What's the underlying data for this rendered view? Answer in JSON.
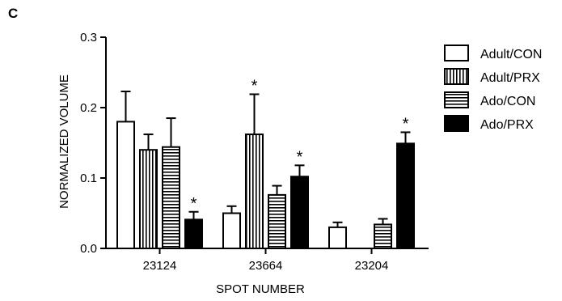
{
  "panel_label": "C",
  "chart_data": {
    "type": "bar",
    "xlabel": "SPOT NUMBER",
    "ylabel": "NORMALIZED VOLUME",
    "ylim": [
      0,
      0.3
    ],
    "yticks": [
      0.0,
      0.1,
      0.2,
      0.3
    ],
    "ytick_labels": [
      "0.0",
      "0.1",
      "0.2",
      "0.3"
    ],
    "categories": [
      "23124",
      "23664",
      "23204"
    ],
    "legend_position": "right",
    "series": [
      {
        "name": "Adult/CON",
        "pattern": "open",
        "values": [
          0.18,
          0.05,
          0.03
        ],
        "errors": [
          0.043,
          0.01,
          0.007
        ]
      },
      {
        "name": "Adult/PRX",
        "pattern": "vertical-stripes",
        "values": [
          0.14,
          0.162,
          null
        ],
        "errors": [
          0.022,
          0.057,
          null
        ]
      },
      {
        "name": "Ado/CON",
        "pattern": "horizontal-stripes",
        "values": [
          0.144,
          0.076,
          0.034
        ],
        "errors": [
          0.041,
          0.013,
          0.008
        ]
      },
      {
        "name": "Ado/PRX",
        "pattern": "solid",
        "values": [
          0.041,
          0.102,
          0.149
        ],
        "errors": [
          0.011,
          0.016,
          0.016
        ]
      }
    ],
    "significance": [
      {
        "category": 0,
        "series": 3,
        "label": "*"
      },
      {
        "category": 1,
        "series": 1,
        "label": "*"
      },
      {
        "category": 1,
        "series": 3,
        "label": "*"
      },
      {
        "category": 2,
        "series": 3,
        "label": "*"
      }
    ]
  }
}
